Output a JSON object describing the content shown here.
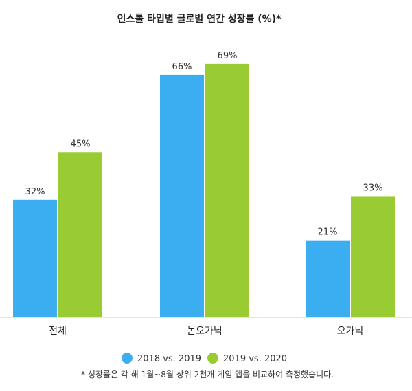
{
  "chart_data": {
    "type": "bar",
    "title": "인스톨 타입별 글로벌 연간 성장률 (%)*",
    "categories": [
      "전체",
      "논오가닉",
      "오가닉"
    ],
    "series": [
      {
        "name": "2018 vs. 2019",
        "values": [
          32,
          66,
          21
        ],
        "color": "#3aaef0"
      },
      {
        "name": "2019 vs. 2020",
        "values": [
          45,
          69,
          33
        ],
        "color": "#99cc33"
      }
    ],
    "value_suffix": "%",
    "ylim": [
      0,
      100
    ],
    "grid": false,
    "legend_position": "bottom",
    "footnote": "* 성장률은 각 해 1월~8월 상위 2천개 게임 앱을 비교하여 측정했습니다."
  }
}
